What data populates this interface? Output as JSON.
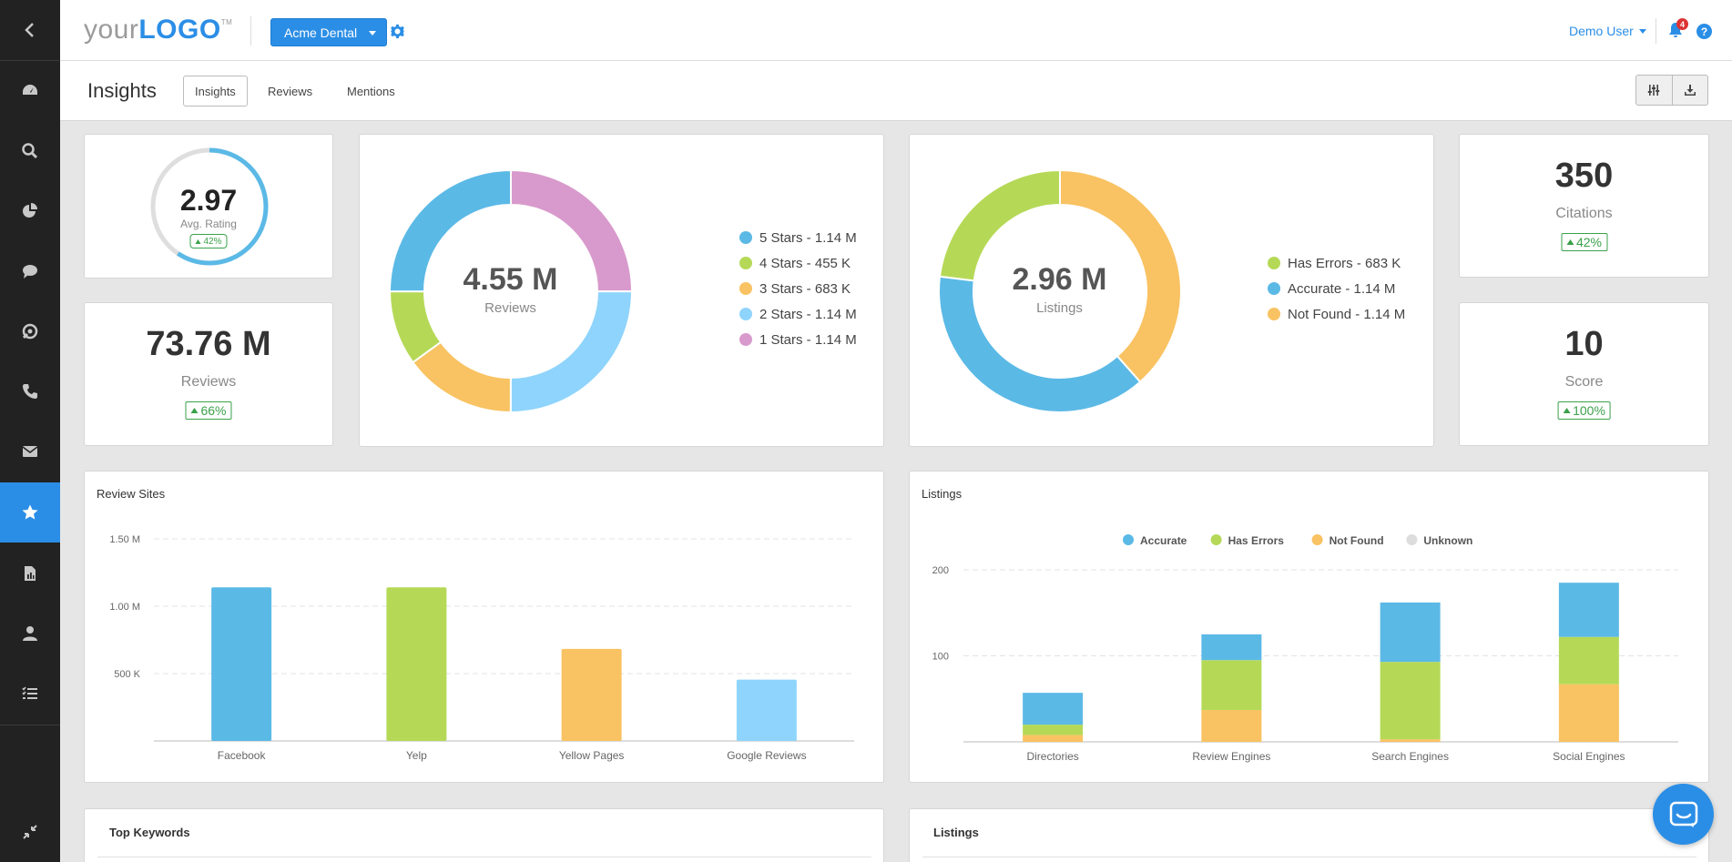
{
  "header": {
    "logo_text_1": "your",
    "logo_text_2": "LOGO",
    "logo_tm": "TM",
    "account_label": "Acme Dental",
    "user_label": "Demo User",
    "notifications_count": "4",
    "help_label": "?"
  },
  "sidebar": {
    "items": [
      "back",
      "dashboard",
      "search",
      "reports",
      "chat",
      "support",
      "phone",
      "email",
      "reviews",
      "documents",
      "contacts",
      "tasks",
      "collapse"
    ],
    "active": "reviews"
  },
  "subheader": {
    "title": "Insights",
    "tabs": [
      "Insights",
      "Reviews",
      "Mentions"
    ],
    "active_tab": "Insights"
  },
  "rating_card": {
    "value": "2.97",
    "label": "Avg. Rating",
    "change": "42%",
    "rating_fraction": 0.594
  },
  "reviews_card": {
    "value": "73.76 M",
    "label": "Reviews",
    "change": "66%"
  },
  "citations_card": {
    "value": "350",
    "label": "Citations",
    "change": "42%"
  },
  "score_card": {
    "value": "10",
    "label": "Score",
    "change": "100%"
  },
  "reviews_donut": {
    "center_value": "4.55 M",
    "center_label": "Reviews",
    "legend": [
      {
        "label": "5 Stars - 1.14 M",
        "color": "#5bb9e6"
      },
      {
        "label": "4 Stars - 455 K",
        "color": "#b5d957"
      },
      {
        "label": "3 Stars - 683 K",
        "color": "#f9c262"
      },
      {
        "label": "2 Stars - 1.14 M",
        "color": "#8fd4fc"
      },
      {
        "label": "1 Stars - 1.14 M",
        "color": "#d89acc"
      }
    ]
  },
  "listings_donut": {
    "center_value": "2.96 M",
    "center_label": "Listings",
    "legend": [
      {
        "label": "Has Errors - 683 K",
        "color": "#b5d957"
      },
      {
        "label": "Accurate - 1.14 M",
        "color": "#5bb9e6"
      },
      {
        "label": "Not Found - 1.14 M",
        "color": "#f9c262"
      }
    ]
  },
  "review_sites": {
    "title": "Review Sites"
  },
  "listings_chart": {
    "title": "Listings"
  },
  "bottom": {
    "keywords_title": "Top Keywords",
    "listings_title": "Listings"
  },
  "chart_data": [
    {
      "type": "pie",
      "categories": [
        "5 Stars",
        "4 Stars",
        "3 Stars",
        "2 Stars",
        "1 Stars"
      ],
      "values": [
        1.14,
        0.455,
        0.683,
        1.14,
        1.14
      ],
      "colors": [
        "#5bb9e6",
        "#b5d957",
        "#f9c262",
        "#8fd4fc",
        "#d89acc"
      ],
      "order": [
        "1 Stars",
        "2 Stars",
        "3 Stars",
        "4 Stars",
        "5 Stars"
      ],
      "unit": "M"
    },
    {
      "type": "pie",
      "categories": [
        "Has Errors",
        "Accurate",
        "Not Found"
      ],
      "values": [
        0.683,
        1.14,
        1.14
      ],
      "colors": [
        "#b5d957",
        "#5bb9e6",
        "#f9c262"
      ],
      "order": [
        "Not Found",
        "Accurate",
        "Has Errors"
      ],
      "unit": "M"
    },
    {
      "type": "bar",
      "title": "Review Sites",
      "categories": [
        "Facebook",
        "Yelp",
        "Yellow Pages",
        "Google Reviews"
      ],
      "values": [
        1140000,
        1140000,
        683000,
        455000
      ],
      "colors": [
        "#5bb9e6",
        "#b5d957",
        "#f9c262",
        "#8fd4fc"
      ],
      "ylim": [
        0,
        1500000
      ],
      "yticks": [
        500000,
        1000000,
        1500000
      ],
      "ytick_labels": [
        "500 K",
        "1.00 M",
        "1.50 M"
      ],
      "grid": true
    },
    {
      "type": "bar",
      "stacked": true,
      "title": "Listings",
      "categories": [
        "Directories",
        "Review Engines",
        "Search Engines",
        "Social Engines"
      ],
      "series": [
        {
          "name": "Unknown",
          "color": "#dddddd",
          "values": [
            0,
            0,
            0,
            0
          ]
        },
        {
          "name": "Not Found",
          "color": "#f9c262",
          "values": [
            8,
            37,
            3,
            67
          ]
        },
        {
          "name": "Has Errors",
          "color": "#b5d957",
          "values": [
            12,
            58,
            90,
            55
          ]
        },
        {
          "name": "Accurate",
          "color": "#5bb9e6",
          "values": [
            37,
            30,
            69,
            63
          ]
        }
      ],
      "legend_order": [
        "Accurate",
        "Has Errors",
        "Not Found",
        "Unknown"
      ],
      "ylim": [
        0,
        200
      ],
      "yticks": [
        100,
        200
      ],
      "legend": "top-center",
      "grid": true
    }
  ]
}
